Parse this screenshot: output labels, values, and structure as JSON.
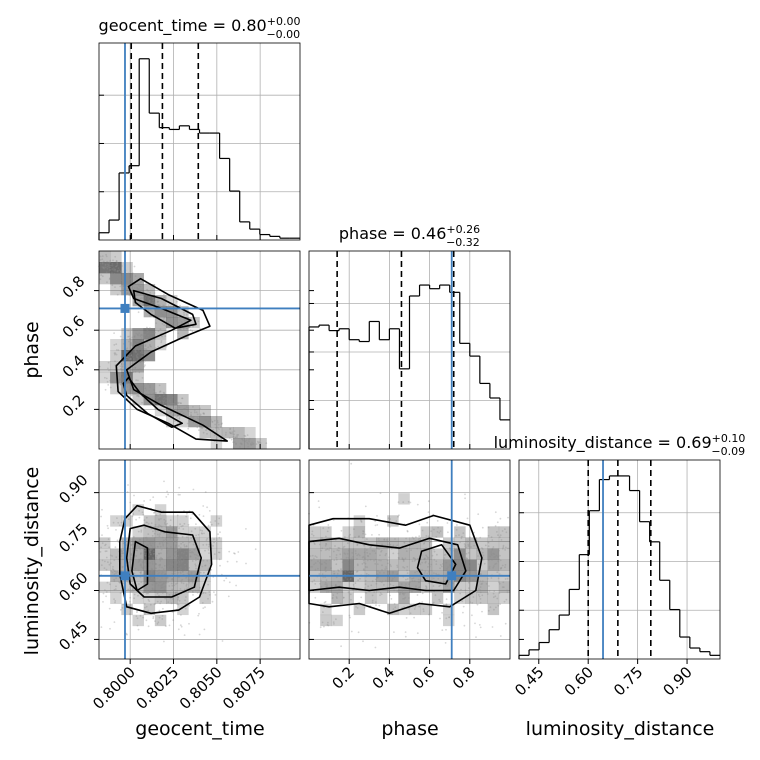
{
  "chart_data": {
    "type": "corner",
    "colors": {
      "truth": "#3f7fbf",
      "hist": "#000000",
      "scatter": "#8c8c8c",
      "density": "#555555"
    },
    "parameters": [
      "geocent_time",
      "phase",
      "luminosity_distance"
    ],
    "truths": [
      0.7997,
      0.71,
      0.645
    ],
    "ranges": [
      [
        0.7982,
        0.8098
      ],
      [
        0.0,
        1.0
      ],
      [
        0.39,
        1.0
      ]
    ],
    "ticks": [
      {
        "values": [
          0.8,
          0.8025,
          0.805,
          0.8075
        ],
        "labels": [
          "0.8000",
          "0.8025",
          "0.8050",
          "0.8075"
        ]
      },
      {
        "values": [
          0.2,
          0.4,
          0.6,
          0.8
        ],
        "labels": [
          "0.2",
          "0.4",
          "0.6",
          "0.8"
        ]
      },
      {
        "values": [
          0.45,
          0.6,
          0.75,
          0.9
        ],
        "labels": [
          "0.45",
          "0.60",
          "0.75",
          "0.90"
        ]
      }
    ],
    "titles": [
      {
        "main": "geocent_time = 0.80",
        "sup": "+0.00",
        "sub": "−0.00"
      },
      {
        "main": "phase = 0.46",
        "sup": "+0.26",
        "sub": "−0.32"
      },
      {
        "main": "luminosity_distance = 0.69",
        "sup": "+0.10",
        "sub": "−0.09"
      }
    ],
    "quantiles": [
      [
        0.80006,
        0.80186,
        0.80393
      ],
      [
        0.14,
        0.46,
        0.72
      ],
      [
        0.6,
        0.69,
        0.79
      ]
    ],
    "histograms": [
      {
        "values": [
          0.04,
          0.11,
          0.37,
          0.41,
          1.0,
          0.7,
          0.62,
          0.61,
          0.63,
          0.61,
          0.59,
          0.59,
          0.45,
          0.27,
          0.1,
          0.06,
          0.03,
          0.02,
          0.01,
          0.01
        ]
      },
      {
        "values": [
          0.67,
          0.68,
          0.65,
          0.66,
          0.6,
          0.59,
          0.7,
          0.6,
          0.66,
          0.44,
          0.84,
          0.9,
          0.88,
          0.9,
          0.86,
          0.58,
          0.51,
          0.36,
          0.28,
          0.16
        ]
      },
      {
        "values": [
          0.02,
          0.05,
          0.09,
          0.16,
          0.24,
          0.38,
          0.57,
          0.81,
          0.98,
          1.0,
          1.0,
          0.92,
          0.75,
          0.64,
          0.43,
          0.27,
          0.12,
          0.06,
          0.04,
          0.02
        ]
      }
    ]
  }
}
